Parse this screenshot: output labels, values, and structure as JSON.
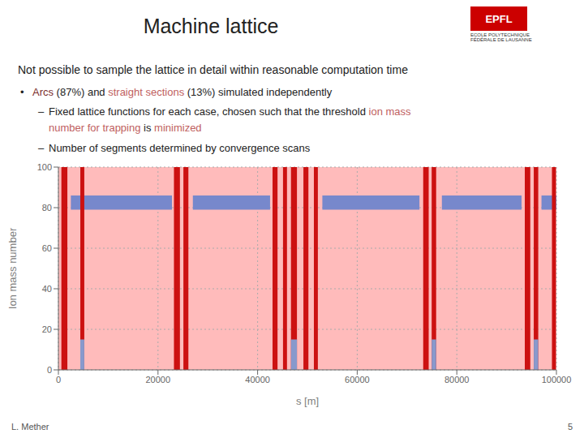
{
  "chart_data": {
    "type": "bands",
    "title": "Machine lattice",
    "subtitle": "Not possible to sample the lattice in detail within reasonable computation time",
    "annotations": [
      [
        {
          "text": "•"
        },
        {
          "text": "Arcs",
          "color": "#7B2D2D"
        },
        {
          "text": " (87%) and "
        },
        {
          "text": "straight sections",
          "color": "#C06060"
        },
        {
          "text": " (13%) simulated independently"
        }
      ],
      [
        {
          "text": "–"
        },
        {
          "text": "Fixed lattice functions for each case, chosen such that the threshold "
        },
        {
          "text": "ion mass",
          "color": "#C06060"
        }
      ],
      [
        {
          "text": "number for trapping",
          "color": "#C06060"
        },
        {
          "text": " is "
        },
        {
          "text": "minimized",
          "color": "#C06060"
        }
      ],
      [
        {
          "text": "–"
        },
        {
          "text": "Number of segments determined by convergence scans"
        }
      ]
    ],
    "logo": {
      "texts": [
        "EPFL",
        "ECOLE POLYTECHNIQUE",
        "FÉDÉRALE DE LAUSANNE"
      ],
      "color": "#CC0000"
    },
    "footer": [
      "L. Mether",
      "5"
    ],
    "xlabel": "s [m]",
    "ylabel": "Ion mass number",
    "xlim": [
      0,
      100000
    ],
    "ylim": [
      0,
      100
    ],
    "xticks": [
      0,
      20000,
      40000,
      60000,
      80000,
      100000
    ],
    "yticks": [
      0,
      20,
      40,
      60,
      80,
      100
    ],
    "grid": true,
    "color": "#FFBBBB",
    "arc_segments": {
      "color": "#7788CC",
      "y": [
        79,
        86
      ],
      "segments": [
        {
          "xstart": 2500,
          "xend": 22800
        },
        {
          "xstart": 27000,
          "xend": 42500
        },
        {
          "xstart": 53000,
          "xend": 72500
        },
        {
          "xstart": 77000,
          "xend": 93000
        },
        {
          "xstart": 97000,
          "xend": 100000
        }
      ]
    },
    "straight_sections": {
      "color": "#CC1111",
      "spike_color": "#8899CC",
      "spike_y": [
        0,
        15
      ],
      "segments": [
        {
          "xstart": 600,
          "xend": 1800,
          "spike": false
        },
        {
          "xstart": 4400,
          "xend": 5200,
          "spike": true
        },
        {
          "xstart": 23200,
          "xend": 24400,
          "spike": false
        },
        {
          "xstart": 25100,
          "xend": 26100,
          "spike": false
        },
        {
          "xstart": 43000,
          "xend": 44000,
          "spike": false
        },
        {
          "xstart": 45100,
          "xend": 45900,
          "spike": false
        },
        {
          "xstart": 46700,
          "xend": 47900,
          "spike": true
        },
        {
          "xstart": 49200,
          "xend": 50200,
          "spike": false
        },
        {
          "xstart": 51300,
          "xend": 52100,
          "spike": false
        },
        {
          "xstart": 73250,
          "xend": 74350,
          "spike": false
        },
        {
          "xstart": 74950,
          "xend": 75850,
          "spike": true
        },
        {
          "xstart": 93650,
          "xend": 94750,
          "spike": false
        },
        {
          "xstart": 95450,
          "xend": 96350,
          "spike": true
        },
        {
          "xstart": 99100,
          "xend": 99900,
          "spike": false
        }
      ]
    }
  }
}
